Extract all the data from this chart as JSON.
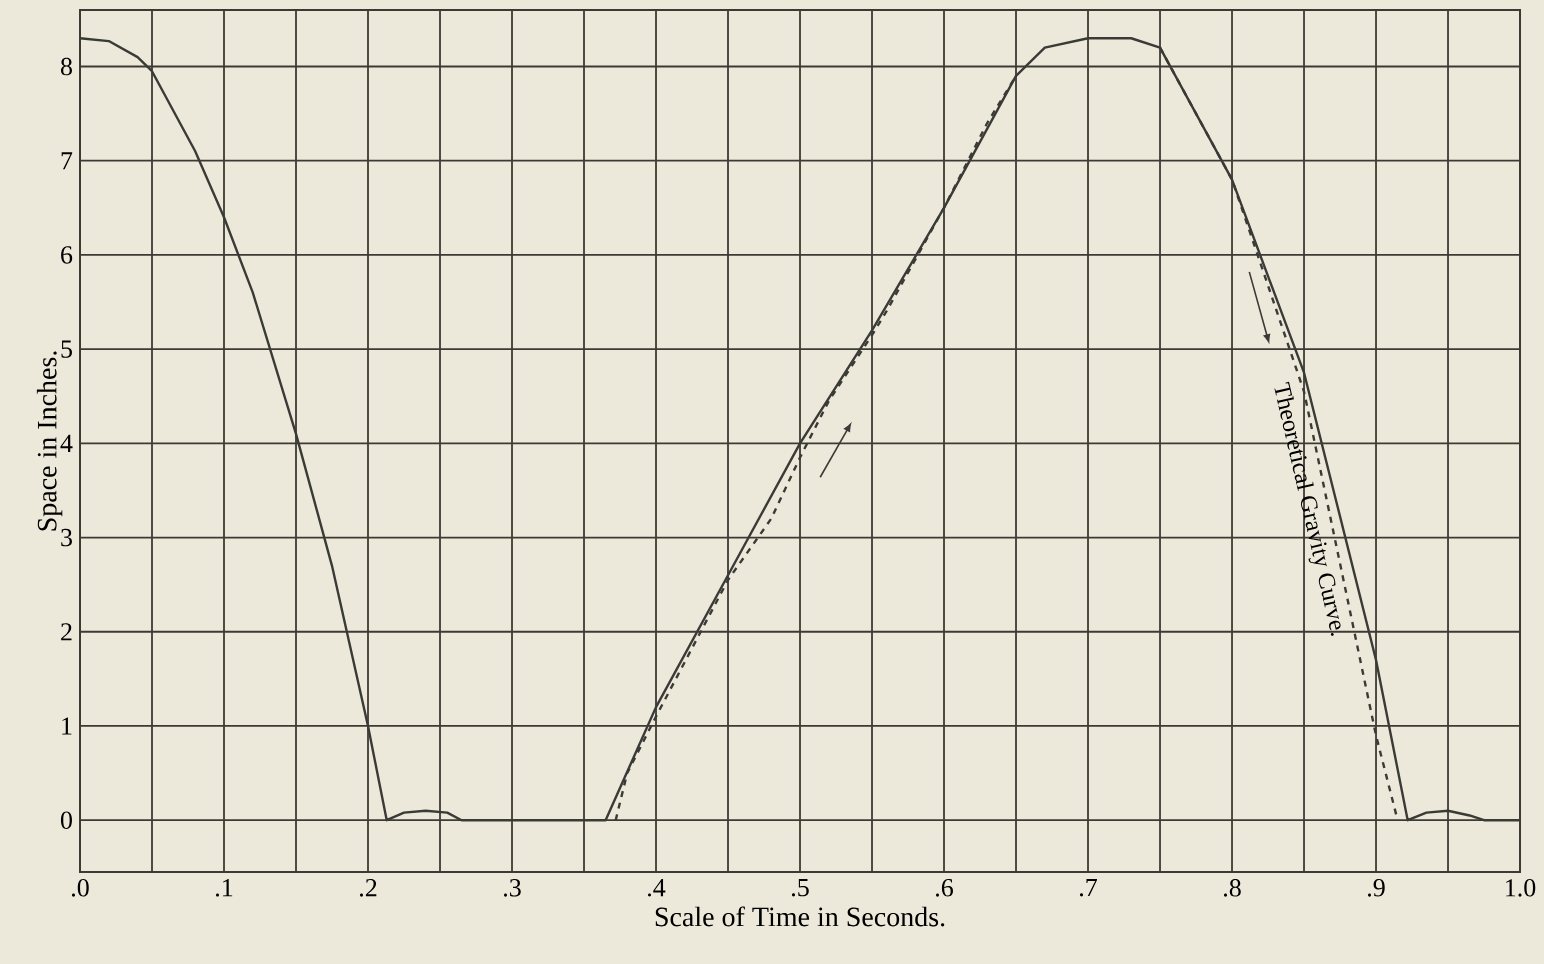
{
  "chart_data": {
    "type": "line",
    "xlabel": "Scale of Time in Seconds.",
    "ylabel": "Space in Inches.",
    "xlim": [
      0,
      1.0
    ],
    "ylim": [
      -0.55,
      8.6
    ],
    "xticks": [
      {
        "value": 0,
        "label": ".0"
      },
      {
        "value": 0.1,
        "label": ".1"
      },
      {
        "value": 0.2,
        "label": ".2"
      },
      {
        "value": 0.3,
        "label": ".3"
      },
      {
        "value": 0.4,
        "label": ".4"
      },
      {
        "value": 0.5,
        "label": ".5"
      },
      {
        "value": 0.6,
        "label": ".6"
      },
      {
        "value": 0.7,
        "label": ".7"
      },
      {
        "value": 0.8,
        "label": ".8"
      },
      {
        "value": 0.9,
        "label": ".9"
      },
      {
        "value": 1.0,
        "label": "1.0"
      }
    ],
    "yticks": [
      0,
      1,
      2,
      3,
      4,
      5,
      6,
      7,
      8
    ],
    "grid": true,
    "marker": "none",
    "series": [
      {
        "color": "#3a3a36",
        "line_style": "solid",
        "x": [
          0,
          0.02,
          0.04,
          0.05,
          0.08,
          0.1,
          0.12,
          0.15,
          0.175,
          0.2,
          0.213,
          0.225,
          0.24,
          0.255,
          0.265,
          0.365,
          0.4,
          0.45,
          0.5,
          0.55,
          0.6,
          0.65,
          0.67,
          0.7,
          0.73,
          0.75,
          0.8,
          0.85,
          0.9,
          0.922,
          0.935,
          0.95,
          0.965,
          0.975,
          1.0
        ],
        "values": [
          8.3,
          8.27,
          8.1,
          7.95,
          7.1,
          6.4,
          5.6,
          4.1,
          2.7,
          1.0,
          0.0,
          0.08,
          0.1,
          0.08,
          0.0,
          0.0,
          1.2,
          2.6,
          4.0,
          5.2,
          6.5,
          7.9,
          8.2,
          8.3,
          8.3,
          8.2,
          6.8,
          4.75,
          1.7,
          0.0,
          0.08,
          0.1,
          0.05,
          0.0,
          0.0
        ]
      },
      {
        "color": "#3a3a36",
        "line_style": "dashed",
        "x": [
          0.372,
          0.38,
          0.4,
          0.45,
          0.48,
          0.5,
          0.52,
          0.55,
          0.56,
          0.6,
          0.63,
          0.65
        ],
        "values": [
          0.0,
          0.5,
          1.1,
          2.55,
          3.2,
          3.85,
          4.45,
          5.15,
          5.4,
          6.5,
          7.4,
          7.9
        ]
      },
      {
        "color": "#3a3a36",
        "line_style": "dashed",
        "x": [
          0.75,
          0.8,
          0.85,
          0.9,
          0.915
        ],
        "values": [
          8.2,
          6.8,
          4.55,
          0.9,
          0.0
        ]
      }
    ],
    "annotations": [
      "Theoretical Gravity Curve."
    ]
  }
}
